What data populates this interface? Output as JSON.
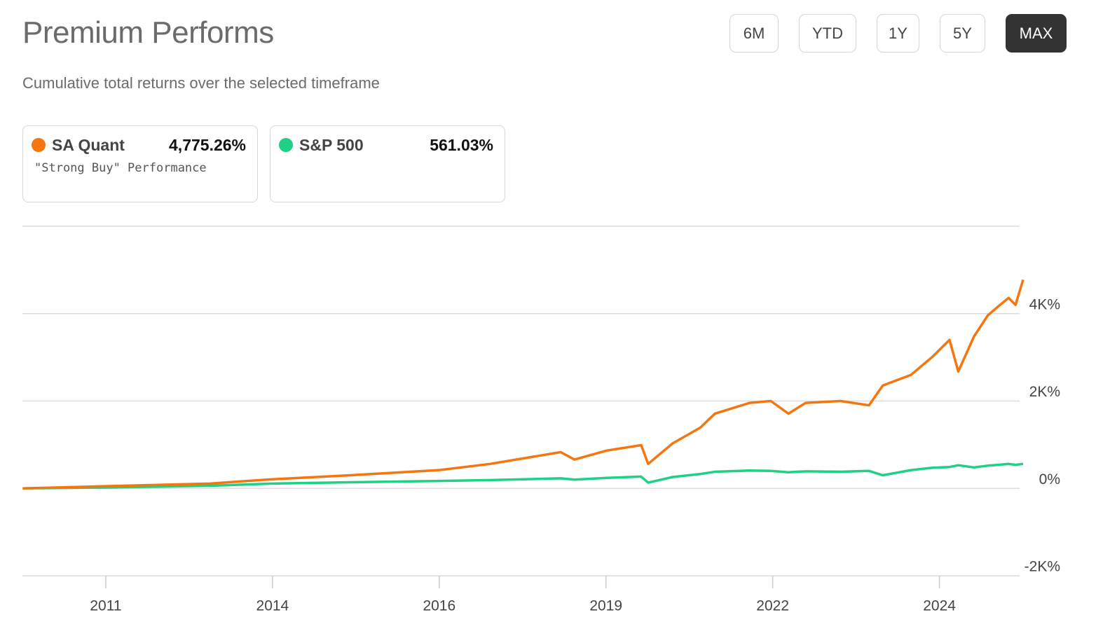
{
  "chart_data": {
    "type": "line",
    "title": "Premium Performs",
    "subtitle": "Cumulative total returns over the selected timeframe",
    "timeframes": [
      "6M",
      "YTD",
      "1Y",
      "5Y",
      "MAX"
    ],
    "active_timeframe": "MAX",
    "x": [
      2009.68,
      2010.99,
      2012.66,
      2013.65,
      2014.89,
      2016.3,
      2017.11,
      2018.23,
      2018.45,
      2018.96,
      2019.51,
      2019.62,
      2020.01,
      2020.45,
      2020.68,
      2021.23,
      2021.57,
      2021.85,
      2022.12,
      2022.68,
      2023.13,
      2023.35,
      2023.8,
      2024.13,
      2024.41,
      2024.55,
      2024.8,
      2025.02,
      2025.19,
      2025.35,
      2025.46,
      2025.58
    ],
    "series": [
      {
        "name": "SA Quant",
        "subtitle": "\"Strong Buy\" Performance",
        "return_label": "4,775.26%",
        "color": "#f5750f",
        "values": [
          0,
          50,
          110,
          210,
          300,
          420,
          560,
          830,
          660,
          865,
          990,
          560,
          1030,
          1390,
          1710,
          1955,
          2000,
          1710,
          1955,
          2000,
          1900,
          2355,
          2600,
          3000,
          3400,
          2675,
          3480,
          3960,
          4170,
          4360,
          4200,
          4775
        ]
      },
      {
        "name": "S&P 500",
        "return_label": "561.03%",
        "color": "#1ed184",
        "values": [
          0,
          20,
          60,
          110,
          140,
          170,
          190,
          230,
          200,
          240,
          270,
          130,
          260,
          330,
          380,
          410,
          400,
          370,
          390,
          380,
          400,
          300,
          420,
          470,
          490,
          530,
          480,
          520,
          540,
          560,
          540,
          561
        ]
      }
    ],
    "xlim": [
      2009.675,
      2025.58
    ],
    "xticks": [
      {
        "value": 2011.0,
        "label": "2011"
      },
      {
        "value": 2013.65,
        "label": "2014"
      },
      {
        "value": 2016.3,
        "label": "2016"
      },
      {
        "value": 2018.95,
        "label": "2019"
      },
      {
        "value": 2021.6,
        "label": "2022"
      },
      {
        "value": 2024.25,
        "label": "2024"
      }
    ],
    "ylim": [
      -2000,
      6000
    ],
    "yticks": [
      {
        "value": -2000,
        "label": "-2K%"
      },
      {
        "value": 0,
        "label": "0%"
      },
      {
        "value": 2000,
        "label": "2K%"
      },
      {
        "value": 4000,
        "label": "4K%"
      }
    ],
    "grid": true
  }
}
